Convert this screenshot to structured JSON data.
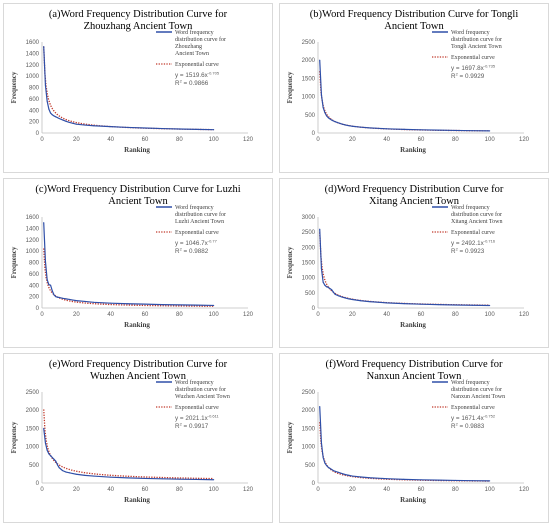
{
  "chart_data": [
    {
      "type": "line",
      "title_lines": [
        "(a)Word Frequency Distribution Curve for",
        "Zhouzhang Ancient Town"
      ],
      "xlabel": "Ranking",
      "ylabel": "Frequency",
      "xlim": [
        0,
        120
      ],
      "ylim": [
        0,
        1600
      ],
      "xticks": [
        0,
        20,
        40,
        60,
        80,
        100,
        120
      ],
      "yticks": [
        0,
        200,
        400,
        600,
        800,
        1000,
        1200,
        1400,
        1600
      ],
      "legend_word_lines": [
        "Word frequency",
        "distribution curve for",
        "Zhouzhang",
        "Ancient Town"
      ],
      "legend_exp": "Exponential curve",
      "eq_coef": "y = 1519.6x",
      "eq_exp": "-0.705",
      "r2_label": "R",
      "r2_value": "= 0.9866",
      "fit": {
        "a": 1519.6,
        "b": -0.705
      },
      "series": [
        {
          "x": [
            1,
            2,
            3,
            4,
            5,
            6,
            7,
            8,
            9,
            10,
            12,
            14,
            16,
            18,
            20,
            25,
            30,
            40,
            50,
            60,
            70,
            80,
            90,
            100
          ],
          "y": [
            1520,
            840,
            560,
            420,
            350,
            320,
            300,
            285,
            270,
            255,
            230,
            205,
            185,
            170,
            155,
            140,
            128,
            112,
            98,
            88,
            78,
            70,
            64,
            58
          ]
        }
      ]
    },
    {
      "type": "line",
      "title_lines": [
        "(b)Word Frequency Distribution Curve for Tongli",
        "Ancient Town"
      ],
      "xlabel": "Ranking",
      "ylabel": "Frequency",
      "xlim": [
        0,
        120
      ],
      "ylim": [
        0,
        2500
      ],
      "xticks": [
        0,
        20,
        40,
        60,
        80,
        100,
        120
      ],
      "yticks": [
        0,
        500,
        1000,
        1500,
        2000,
        2500
      ],
      "legend_word_lines": [
        "Word frequency",
        "distribution curve for",
        "Tongli Ancient Town"
      ],
      "legend_exp": "Exponential curve",
      "eq_coef": "y = 1697.8x",
      "eq_exp": "-0.735",
      "r2_label": "R",
      "r2_value": "= 0.9929",
      "fit": {
        "a": 1697.8,
        "b": -0.735
      },
      "series": [
        {
          "x": [
            1,
            2,
            3,
            4,
            5,
            6,
            7,
            8,
            9,
            10,
            12,
            14,
            16,
            18,
            20,
            25,
            30,
            40,
            50,
            60,
            70,
            80,
            90,
            100
          ],
          "y": [
            2000,
            1050,
            700,
            560,
            470,
            420,
            385,
            355,
            330,
            310,
            275,
            245,
            220,
            200,
            185,
            160,
            140,
            115,
            100,
            88,
            78,
            70,
            64,
            58
          ]
        }
      ]
    },
    {
      "type": "line",
      "title_lines": [
        "(c)Word Frequency Distribution Curve for Luzhi",
        "Ancient Town"
      ],
      "xlabel": "Ranking",
      "ylabel": "Frequency",
      "xlim": [
        0,
        120
      ],
      "ylim": [
        0,
        1600
      ],
      "xticks": [
        0,
        20,
        40,
        60,
        80,
        100,
        120
      ],
      "yticks": [
        0,
        200,
        400,
        600,
        800,
        1000,
        1200,
        1400,
        1600
      ],
      "legend_word_lines": [
        "Word frequency",
        "distribution curve for",
        "Luzhi Ancient Town"
      ],
      "legend_exp": "Exponential curve",
      "eq_coef": "y = 1046.7x",
      "eq_exp": "-0.77",
      "r2_label": "R",
      "r2_value": "= 0.9882",
      "fit": {
        "a": 1046.7,
        "b": -0.77
      },
      "series": [
        {
          "x": [
            1,
            2,
            3,
            4,
            5,
            6,
            7,
            8,
            9,
            10,
            12,
            14,
            16,
            18,
            20,
            25,
            30,
            40,
            50,
            60,
            70,
            80,
            90,
            100
          ],
          "y": [
            1500,
            820,
            500,
            410,
            400,
            300,
            230,
            200,
            190,
            185,
            170,
            160,
            150,
            140,
            130,
            115,
            100,
            85,
            75,
            68,
            60,
            55,
            50,
            45
          ]
        }
      ]
    },
    {
      "type": "line",
      "title_lines": [
        "(d)Word Frequency Distribution Curve for",
        "Xitang Ancient Town"
      ],
      "xlabel": "Ranking",
      "ylabel": "Frequency",
      "xlim": [
        0,
        120
      ],
      "ylim": [
        0,
        3000
      ],
      "xticks": [
        0,
        20,
        40,
        60,
        80,
        100,
        120
      ],
      "yticks": [
        0,
        500,
        1000,
        1500,
        2000,
        2500,
        3000
      ],
      "legend_word_lines": [
        "Word frequency",
        "distribution curve for",
        "Xitang Ancient Town"
      ],
      "legend_exp": "Exponential curve",
      "eq_coef": "y = 2492.1x",
      "eq_exp": "-0.716",
      "r2_label": "R",
      "r2_value": "= 0.9923",
      "fit": {
        "a": 2492.1,
        "b": -0.716
      },
      "series": [
        {
          "x": [
            1,
            2,
            3,
            4,
            5,
            6,
            7,
            8,
            9,
            10,
            12,
            14,
            16,
            18,
            20,
            25,
            30,
            40,
            50,
            60,
            70,
            80,
            90,
            100
          ],
          "y": [
            2600,
            1300,
            850,
            750,
            700,
            680,
            640,
            600,
            520,
            450,
            400,
            360,
            330,
            300,
            280,
            240,
            210,
            170,
            145,
            125,
            110,
            100,
            90,
            82
          ]
        }
      ]
    },
    {
      "type": "line",
      "title_lines": [
        "(e)Word Frequency Distribution Curve for",
        "Wuzhen Ancient Town"
      ],
      "xlabel": "Ranking",
      "ylabel": "Frequency",
      "xlim": [
        0,
        120
      ],
      "ylim": [
        0,
        2500
      ],
      "xticks": [
        0,
        20,
        40,
        60,
        80,
        100,
        120
      ],
      "yticks": [
        0,
        500,
        1000,
        1500,
        2000,
        2500
      ],
      "legend_word_lines": [
        "Word frequency",
        "distribution curve for",
        "Wuzhen Ancient Town"
      ],
      "legend_exp": "Exponential curve",
      "eq_coef": "y = 2021.1x",
      "eq_exp": "-0.611",
      "r2_label": "R",
      "r2_value": "= 0.9917",
      "fit": {
        "a": 2021.1,
        "b": -0.611
      },
      "series": [
        {
          "x": [
            1,
            2,
            3,
            4,
            5,
            6,
            7,
            8,
            9,
            10,
            12,
            14,
            16,
            18,
            20,
            25,
            30,
            40,
            50,
            60,
            70,
            80,
            90,
            100
          ],
          "y": [
            1500,
            1100,
            900,
            800,
            750,
            700,
            650,
            600,
            500,
            420,
            340,
            300,
            280,
            260,
            240,
            210,
            190,
            160,
            140,
            125,
            115,
            105,
            98,
            90
          ]
        }
      ]
    },
    {
      "type": "line",
      "title_lines": [
        "(f)Word Frequency Distribution Curve for",
        "Nanxun Ancient Town"
      ],
      "xlabel": "Ranking",
      "ylabel": "Frequency",
      "xlim": [
        0,
        120
      ],
      "ylim": [
        0,
        2500
      ],
      "xticks": [
        0,
        20,
        40,
        60,
        80,
        100,
        120
      ],
      "yticks": [
        0,
        500,
        1000,
        1500,
        2000,
        2500
      ],
      "legend_word_lines": [
        "Word frequency",
        "distribution curve for",
        "Nanxun Ancient Town"
      ],
      "legend_exp": "Exponential curve",
      "eq_coef": "y = 1671.4x",
      "eq_exp": "-0.752",
      "r2_label": "R",
      "r2_value": "= 0.9883",
      "fit": {
        "a": 1671.4,
        "b": -0.752
      },
      "series": [
        {
          "x": [
            1,
            2,
            3,
            4,
            5,
            6,
            7,
            8,
            9,
            10,
            12,
            14,
            16,
            18,
            20,
            25,
            30,
            40,
            50,
            60,
            70,
            80,
            90,
            100
          ],
          "y": [
            2100,
            1100,
            700,
            550,
            480,
            430,
            400,
            370,
            340,
            320,
            290,
            260,
            230,
            210,
            190,
            165,
            145,
            118,
            100,
            88,
            78,
            70,
            64,
            58
          ]
        }
      ]
    }
  ],
  "colors": {
    "word_series": "#2f4fa8",
    "exp_fit": "#c0392b",
    "axis": "#bfbfbf",
    "tick_text": "#595959",
    "legend_text": "#404040",
    "panel_border": "#d9d9d9"
  }
}
